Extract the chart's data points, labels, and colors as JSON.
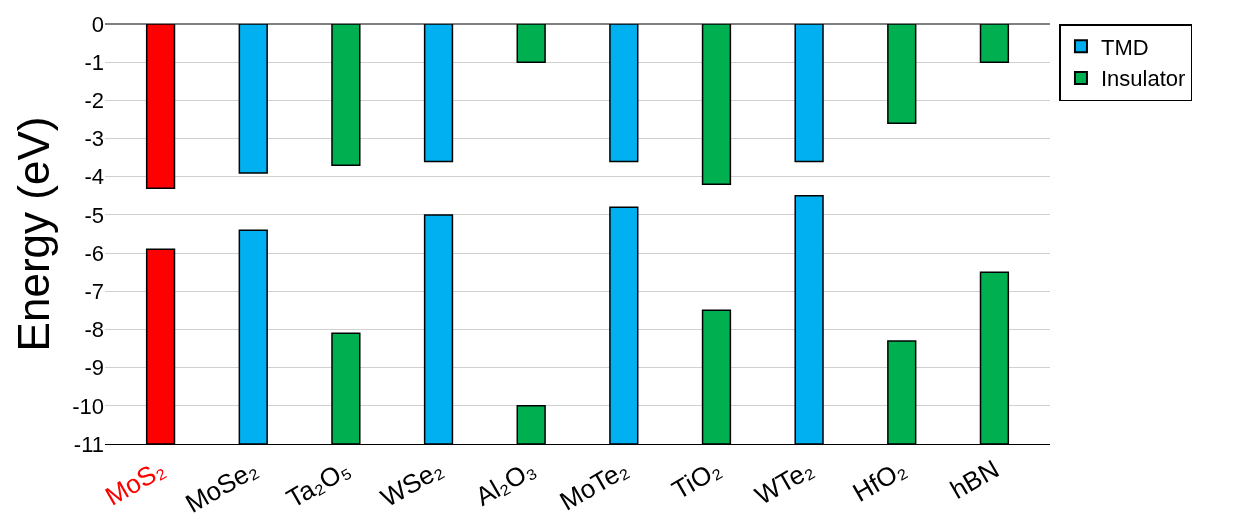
{
  "chart_data": {
    "type": "bar",
    "ylabel": "Energy (eV)",
    "categories": [
      "MoS₂",
      "MoSe₂",
      "Ta₂O₅",
      "WSe₂",
      "Al₂O₃",
      "MoTe₂",
      "TiO₂",
      "WTe₂",
      "HfO₂",
      "hBN"
    ],
    "series": [
      {
        "name": "TMD",
        "color": "#00b0f0",
        "base": [
          null,
          0,
          null,
          0,
          null,
          0,
          null,
          0,
          null,
          null
        ],
        "values": [
          null,
          -3.9,
          null,
          -3.6,
          null,
          -3.6,
          null,
          -3.6,
          null,
          null
        ]
      },
      {
        "color": "#00b0f0",
        "base": [
          null,
          -5.4,
          null,
          -5.0,
          null,
          -4.8,
          null,
          -4.5,
          null,
          null
        ],
        "values": [
          null,
          -5.6,
          null,
          -6.0,
          null,
          -6.2,
          null,
          -6.5,
          null,
          null
        ]
      },
      {
        "name": "Insulator",
        "color": "#00b050",
        "base": [
          null,
          null,
          0,
          null,
          0,
          null,
          0,
          null,
          0,
          0
        ],
        "values": [
          null,
          null,
          -3.7,
          null,
          -1.0,
          null,
          -4.2,
          null,
          -2.6,
          -1.0
        ]
      },
      {
        "color": "#00b050",
        "base": [
          null,
          null,
          -8.1,
          null,
          -10.0,
          null,
          -7.5,
          null,
          -8.3,
          -6.5
        ],
        "values": [
          null,
          null,
          -2.9,
          null,
          -1.0,
          null,
          -3.5,
          null,
          -2.7,
          -4.5
        ]
      },
      {
        "color": "#ff0000",
        "base": [
          0,
          null,
          null,
          null,
          null,
          null,
          null,
          null,
          null,
          null
        ],
        "values": [
          -4.3,
          null,
          null,
          null,
          null,
          null,
          null,
          null,
          null,
          null
        ]
      },
      {
        "color": "#ff0000",
        "base": [
          -5.9,
          null,
          null,
          null,
          null,
          null,
          null,
          null,
          null,
          null
        ],
        "values": [
          -5.1,
          null,
          null,
          null,
          null,
          null,
          null,
          null,
          null,
          null
        ]
      }
    ],
    "ylim": [
      -11,
      0
    ],
    "yticks": [
      0,
      -1,
      -2,
      -3,
      -4,
      -5,
      -6,
      -7,
      -8,
      -9,
      -10,
      -11
    ],
    "grid": "y",
    "legend": "top right"
  }
}
